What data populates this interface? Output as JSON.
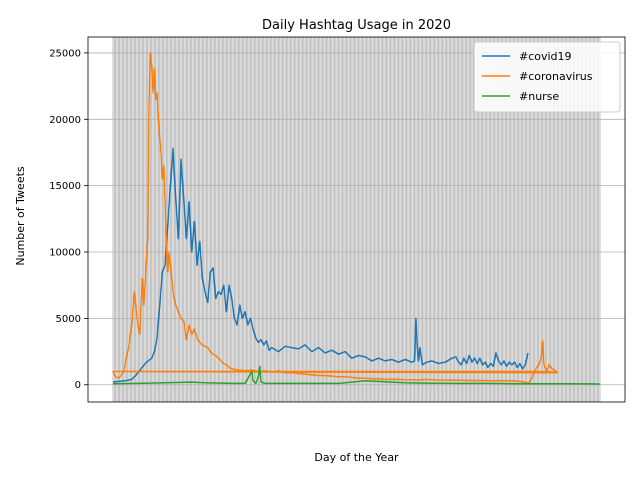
{
  "chart_data": {
    "type": "line",
    "title": "Daily Hashtag Usage in 2020",
    "xlabel": "Day of the Year",
    "ylabel": "Number of Tweets",
    "ylim": [
      -1300,
      26200
    ],
    "yticks": [
      0,
      5000,
      10000,
      15000,
      20000,
      25000
    ],
    "x_range": [
      1,
      366
    ],
    "grid": "both",
    "legend_position": "top-right",
    "series": [
      {
        "name": "#covid19",
        "color": "#1f77b4",
        "points": [
          [
            1,
            200
          ],
          [
            5,
            250
          ],
          [
            10,
            300
          ],
          [
            15,
            400
          ],
          [
            18,
            700
          ],
          [
            22,
            1200
          ],
          [
            26,
            1700
          ],
          [
            30,
            2000
          ],
          [
            32,
            2500
          ],
          [
            34,
            3500
          ],
          [
            36,
            6000
          ],
          [
            38,
            8500
          ],
          [
            40,
            9000
          ],
          [
            42,
            12000
          ],
          [
            44,
            15000
          ],
          [
            46,
            17800
          ],
          [
            48,
            14000
          ],
          [
            50,
            11000
          ],
          [
            52,
            17000
          ],
          [
            54,
            14000
          ],
          [
            56,
            11000
          ],
          [
            58,
            13800
          ],
          [
            60,
            10000
          ],
          [
            62,
            12300
          ],
          [
            64,
            9000
          ],
          [
            66,
            10800
          ],
          [
            68,
            8000
          ],
          [
            70,
            7000
          ],
          [
            72,
            6200
          ],
          [
            74,
            8500
          ],
          [
            76,
            8800
          ],
          [
            78,
            6500
          ],
          [
            80,
            7000
          ],
          [
            82,
            6800
          ],
          [
            84,
            7500
          ],
          [
            86,
            5500
          ],
          [
            88,
            7500
          ],
          [
            90,
            6500
          ],
          [
            92,
            5000
          ],
          [
            94,
            4500
          ],
          [
            96,
            6000
          ],
          [
            98,
            5000
          ],
          [
            100,
            5500
          ],
          [
            102,
            4500
          ],
          [
            104,
            5000
          ],
          [
            106,
            4200
          ],
          [
            108,
            3500
          ],
          [
            110,
            3200
          ],
          [
            112,
            3400
          ],
          [
            114,
            3000
          ],
          [
            116,
            3300
          ],
          [
            118,
            2600
          ],
          [
            120,
            2800
          ],
          [
            125,
            2500
          ],
          [
            130,
            2900
          ],
          [
            135,
            2800
          ],
          [
            140,
            2700
          ],
          [
            145,
            3000
          ],
          [
            150,
            2500
          ],
          [
            155,
            2800
          ],
          [
            160,
            2400
          ],
          [
            165,
            2600
          ],
          [
            170,
            2300
          ],
          [
            175,
            2500
          ],
          [
            180,
            2000
          ],
          [
            185,
            2200
          ],
          [
            190,
            2100
          ],
          [
            195,
            1800
          ],
          [
            200,
            2000
          ],
          [
            205,
            1800
          ],
          [
            210,
            1900
          ],
          [
            215,
            1700
          ],
          [
            220,
            1900
          ],
          [
            225,
            1700
          ],
          [
            227,
            1800
          ],
          [
            228,
            5000
          ],
          [
            229,
            3000
          ],
          [
            230,
            1800
          ],
          [
            231,
            2800
          ],
          [
            233,
            1500
          ],
          [
            236,
            1700
          ],
          [
            240,
            1800
          ],
          [
            245,
            1600
          ],
          [
            250,
            1700
          ],
          [
            255,
            2000
          ],
          [
            258,
            2100
          ],
          [
            260,
            1700
          ],
          [
            262,
            1500
          ],
          [
            264,
            2000
          ],
          [
            266,
            1600
          ],
          [
            268,
            2200
          ],
          [
            270,
            1700
          ],
          [
            272,
            2000
          ],
          [
            274,
            1600
          ],
          [
            276,
            2000
          ],
          [
            278,
            1500
          ],
          [
            280,
            1700
          ],
          [
            282,
            1300
          ],
          [
            284,
            1600
          ],
          [
            286,
            1400
          ],
          [
            288,
            2400
          ],
          [
            290,
            1800
          ],
          [
            292,
            1500
          ],
          [
            294,
            1800
          ],
          [
            296,
            1400
          ],
          [
            298,
            1700
          ],
          [
            300,
            1500
          ],
          [
            302,
            1700
          ],
          [
            304,
            1300
          ],
          [
            306,
            1600
          ],
          [
            308,
            1200
          ],
          [
            310,
            1500
          ],
          [
            312,
            2400
          ]
        ]
      },
      {
        "name": "#coronavirus",
        "color": "#ff7f0e",
        "points": [
          [
            1,
            1000
          ],
          [
            3,
            600
          ],
          [
            5,
            500
          ],
          [
            7,
            700
          ],
          [
            9,
            1000
          ],
          [
            11,
            2000
          ],
          [
            13,
            3000
          ],
          [
            15,
            4500
          ],
          [
            17,
            7000
          ],
          [
            19,
            5000
          ],
          [
            21,
            3800
          ],
          [
            22,
            6000
          ],
          [
            23,
            8000
          ],
          [
            24,
            6000
          ],
          [
            25,
            7500
          ],
          [
            27,
            11000
          ],
          [
            28,
            21000
          ],
          [
            29,
            25000
          ],
          [
            30,
            24000
          ],
          [
            31,
            22000
          ],
          [
            32,
            23800
          ],
          [
            33,
            21500
          ],
          [
            34,
            22000
          ],
          [
            35,
            20000
          ],
          [
            36,
            18500
          ],
          [
            37,
            17500
          ],
          [
            38,
            15500
          ],
          [
            39,
            16500
          ],
          [
            40,
            14000
          ],
          [
            41,
            10500
          ],
          [
            42,
            8500
          ],
          [
            43,
            10000
          ],
          [
            44,
            9000
          ],
          [
            45,
            8000
          ],
          [
            46,
            7000
          ],
          [
            48,
            6000
          ],
          [
            50,
            5500
          ],
          [
            52,
            5000
          ],
          [
            54,
            4800
          ],
          [
            56,
            3400
          ],
          [
            58,
            4500
          ],
          [
            60,
            3800
          ],
          [
            62,
            4200
          ],
          [
            64,
            3500
          ],
          [
            66,
            3200
          ],
          [
            68,
            3000
          ],
          [
            70,
            2900
          ],
          [
            72,
            2800
          ],
          [
            74,
            2500
          ],
          [
            76,
            2300
          ],
          [
            78,
            2200
          ],
          [
            80,
            2000
          ],
          [
            82,
            1800
          ],
          [
            84,
            1600
          ],
          [
            86,
            1500
          ],
          [
            88,
            1300
          ],
          [
            90,
            1200
          ],
          [
            95,
            1100
          ],
          [
            100,
            1050
          ],
          [
            105,
            1100
          ],
          [
            110,
            1000
          ],
          [
            115,
            1050
          ],
          [
            120,
            950
          ],
          [
            125,
            1050
          ],
          [
            130,
            900
          ],
          [
            135,
            900
          ],
          [
            140,
            850
          ],
          [
            145,
            800
          ],
          [
            150,
            750
          ],
          [
            155,
            700
          ],
          [
            160,
            700
          ],
          [
            165,
            650
          ],
          [
            170,
            600
          ],
          [
            175,
            600
          ],
          [
            180,
            550
          ],
          [
            185,
            500
          ],
          [
            190,
            500
          ],
          [
            195,
            450
          ],
          [
            200,
            450
          ],
          [
            205,
            400
          ],
          [
            210,
            400
          ],
          [
            215,
            400
          ],
          [
            220,
            380
          ],
          [
            225,
            380
          ],
          [
            230,
            350
          ],
          [
            235,
            400
          ],
          [
            240,
            380
          ],
          [
            245,
            350
          ],
          [
            250,
            350
          ],
          [
            255,
            350
          ],
          [
            260,
            340
          ],
          [
            265,
            330
          ],
          [
            270,
            320
          ],
          [
            275,
            320
          ],
          [
            280,
            310
          ],
          [
            285,
            300
          ],
          [
            290,
            300
          ],
          [
            295,
            300
          ],
          [
            300,
            300
          ],
          [
            305,
            250
          ],
          [
            310,
            200
          ],
          [
            312,
            100
          ],
          [
            314,
            300
          ],
          [
            316,
            800
          ],
          [
            318,
            1200
          ],
          [
            320,
            1500
          ],
          [
            322,
            2000
          ],
          [
            323,
            3300
          ],
          [
            324,
            1500
          ],
          [
            326,
            1000
          ],
          [
            328,
            1500
          ],
          [
            330,
            1200
          ],
          [
            332,
            1100
          ],
          [
            334,
            900
          ],
          [
            1,
            1000
          ],
          [
            80,
            1000
          ],
          [
            160,
            1000
          ],
          [
            240,
            1000
          ],
          [
            320,
            1000
          ],
          [
            334,
            950
          ]
        ]
      },
      {
        "name": "#nurse",
        "color": "#2ca02c",
        "points": [
          [
            1,
            80
          ],
          [
            20,
            100
          ],
          [
            40,
            150
          ],
          [
            60,
            200
          ],
          [
            70,
            150
          ],
          [
            90,
            100
          ],
          [
            100,
            100
          ],
          [
            105,
            1000
          ],
          [
            106,
            300
          ],
          [
            108,
            100
          ],
          [
            110,
            600
          ],
          [
            111,
            1400
          ],
          [
            112,
            200
          ],
          [
            115,
            100
          ],
          [
            150,
            100
          ],
          [
            170,
            100
          ],
          [
            180,
            200
          ],
          [
            190,
            300
          ],
          [
            200,
            250
          ],
          [
            210,
            200
          ],
          [
            220,
            150
          ],
          [
            240,
            120
          ],
          [
            260,
            100
          ],
          [
            280,
            100
          ],
          [
            300,
            80
          ],
          [
            320,
            80
          ],
          [
            340,
            70
          ],
          [
            360,
            60
          ],
          [
            366,
            50
          ]
        ]
      }
    ]
  }
}
